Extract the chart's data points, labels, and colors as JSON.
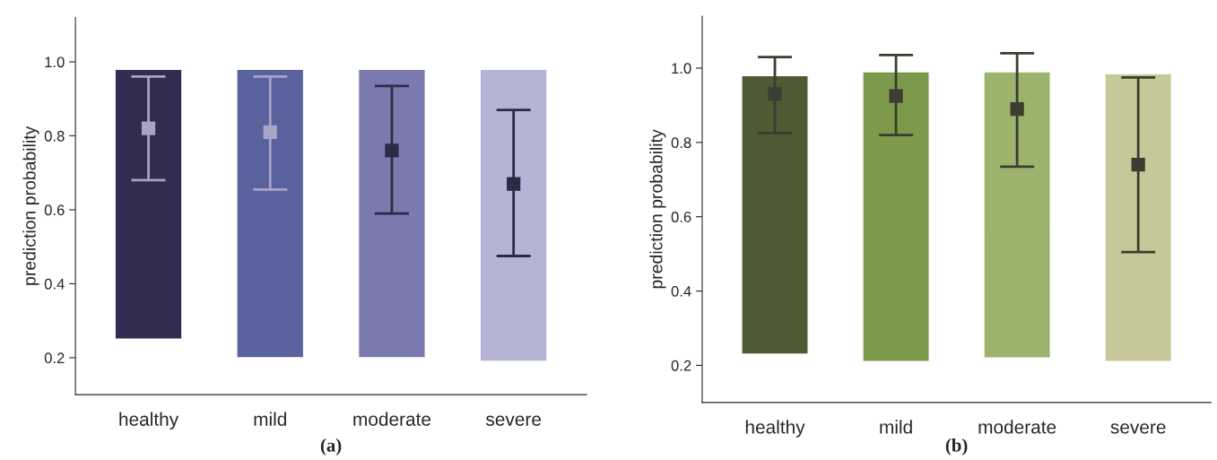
{
  "chart_data": [
    {
      "type": "bar",
      "categories": [
        "healthy",
        "mild",
        "moderate",
        "severe"
      ],
      "ylabel": "prediction probability",
      "ylim": [
        0.1,
        1.12
      ],
      "yticks": [
        0.2,
        0.4,
        0.6,
        0.8,
        {
          "value": 1.0,
          "label": "1.0"
        }
      ],
      "grid": false,
      "annotations": [
        "(a)"
      ],
      "series": [
        {
          "colors": [
            "#312c52",
            "#5a629e",
            "#7a7aae",
            "#b5b3d6"
          ],
          "base": [
            0.25,
            0.2,
            0.2,
            0.19
          ],
          "values": [
            0.73,
            0.78,
            0.78,
            0.79
          ]
        },
        {
          "type": "scatter",
          "marker": "square",
          "x": [
            "healthy",
            "mild",
            "moderate",
            "severe"
          ],
          "colors": [
            "#a8a4c8",
            "#a8a4c8",
            "#2d2a48",
            "#2d2a48"
          ],
          "values": [
            0.82,
            0.81,
            0.76,
            0.67
          ],
          "errors": [
            [
              0.68,
              0.96
            ],
            [
              0.655,
              0.96
            ],
            [
              0.59,
              0.935
            ],
            [
              0.475,
              0.87
            ]
          ]
        }
      ]
    },
    {
      "type": "bar",
      "categories": [
        "healthy",
        "mild",
        "moderate",
        "severe"
      ],
      "ylabel": "prediction probability",
      "ylim": [
        0.1,
        1.14
      ],
      "yticks": [
        0.2,
        0.4,
        0.6,
        0.8,
        {
          "value": 1.0,
          "label": "1.0"
        }
      ],
      "grid": false,
      "annotations": [
        "(b)"
      ],
      "series": [
        {
          "colors": [
            "#4d5a32",
            "#7c9a4a",
            "#9cb36e",
            "#c7c89a"
          ],
          "base": [
            0.23,
            0.21,
            0.22,
            0.21
          ],
          "values": [
            0.75,
            0.78,
            0.77,
            0.775
          ]
        },
        {
          "type": "scatter",
          "marker": "square",
          "x": [
            "healthy",
            "mild",
            "moderate",
            "severe"
          ],
          "colors": [
            "#3a3d30",
            "#3a3d30",
            "#3a3d30",
            "#3a3d30"
          ],
          "values": [
            0.93,
            0.925,
            0.89,
            0.74
          ],
          "errors": [
            [
              0.825,
              1.03
            ],
            [
              0.82,
              1.035
            ],
            [
              0.735,
              1.04
            ],
            [
              0.505,
              0.975
            ]
          ]
        }
      ]
    }
  ]
}
